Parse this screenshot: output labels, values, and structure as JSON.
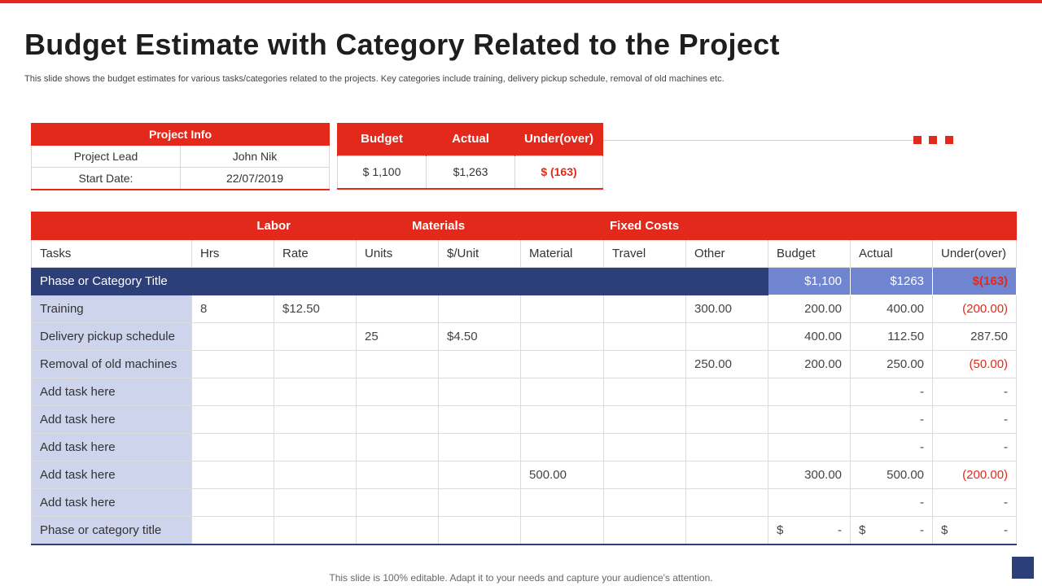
{
  "title": "Budget Estimate with Category Related to the Project",
  "subtitle": "This slide shows the budget estimates for various tasks/categories related to the projects. Key categories include training, delivery pickup schedule, removal of old machines etc.",
  "project_info": {
    "header": "Project Info",
    "rows": [
      {
        "label": "Project Lead",
        "value": "John Nik"
      },
      {
        "label": "Start Date:",
        "value": "22/07/2019"
      }
    ]
  },
  "summary": {
    "headers": [
      "Budget",
      "Actual",
      "Under(over)"
    ],
    "values": [
      "$ 1,100",
      "$1,263",
      "$ (163)"
    ]
  },
  "table": {
    "groups": {
      "labor": "Labor",
      "materials": "Materials",
      "fixed_costs": "Fixed Costs"
    },
    "columns": [
      "Tasks",
      "Hrs",
      "Rate",
      "Units",
      "$/Unit",
      "Material",
      "Travel",
      "Other",
      "Budget",
      "Actual",
      "Under(over)"
    ],
    "phase": {
      "title": "Phase or Category Title",
      "budget": "$1,100",
      "actual": "$1263",
      "under": "$(163)"
    },
    "rows": [
      {
        "task": "Training",
        "hrs": "8",
        "rate": "$12.50",
        "units": "",
        "per_unit": "",
        "material": "",
        "travel": "",
        "other": "300.00",
        "budget": "200.00",
        "actual": "400.00",
        "under": "(200.00)"
      },
      {
        "task": "Delivery pickup schedule",
        "hrs": "",
        "rate": "",
        "units": "25",
        "per_unit": "$4.50",
        "material": "",
        "travel": "",
        "other": "",
        "budget": "400.00",
        "actual": "112.50",
        "under": "287.50"
      },
      {
        "task": "Removal of old machines",
        "hrs": "",
        "rate": "",
        "units": "",
        "per_unit": "",
        "material": "",
        "travel": "",
        "other": "250.00",
        "budget": "200.00",
        "actual": "250.00",
        "under": "(50.00)"
      },
      {
        "task": "Add task here",
        "hrs": "",
        "rate": "",
        "units": "",
        "per_unit": "",
        "material": "",
        "travel": "",
        "other": "",
        "budget": "",
        "actual": "-",
        "under": "-"
      },
      {
        "task": "Add task here",
        "hrs": "",
        "rate": "",
        "units": "",
        "per_unit": "",
        "material": "",
        "travel": "",
        "other": "",
        "budget": "",
        "actual": "-",
        "under": "-"
      },
      {
        "task": "Add task here",
        "hrs": "",
        "rate": "",
        "units": "",
        "per_unit": "",
        "material": "",
        "travel": "",
        "other": "",
        "budget": "",
        "actual": "-",
        "under": "-"
      },
      {
        "task": "Add task here",
        "hrs": "",
        "rate": "",
        "units": "",
        "per_unit": "",
        "material": "500.00",
        "travel": "",
        "other": "",
        "budget": "300.00",
        "actual": "500.00",
        "under": "(200.00)"
      },
      {
        "task": "Add task here",
        "hrs": "",
        "rate": "",
        "units": "",
        "per_unit": "",
        "material": "",
        "travel": "",
        "other": "",
        "budget": "",
        "actual": "-",
        "under": "-"
      }
    ],
    "last_row": {
      "task": "Phase or category title",
      "currency": "$",
      "dash": "-"
    }
  },
  "footer": "This slide is 100% editable. Adapt it to your needs and capture your audience's attention.",
  "colors": {
    "accent": "#e3291b",
    "navy": "#2c3f78",
    "light_blue": "#7085cf",
    "task_bg": "#cdd4ec"
  }
}
